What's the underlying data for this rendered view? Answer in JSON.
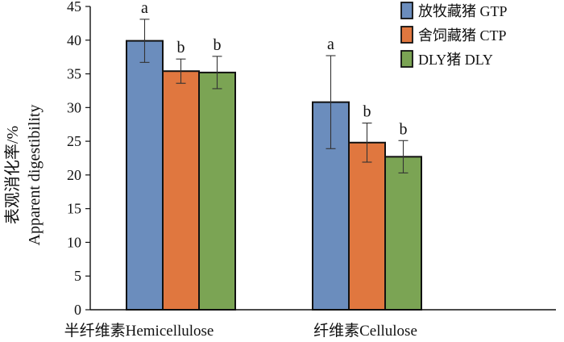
{
  "chart_data": {
    "type": "bar",
    "title": "",
    "xlabel": "",
    "ylabel_cn": "表观消化率/%",
    "ylabel_en": "Apparent digestibility",
    "ylim": [
      0,
      45
    ],
    "yticks": [
      0,
      5,
      10,
      15,
      20,
      25,
      30,
      35,
      40,
      45
    ],
    "grid": false,
    "legend_position": "top-right",
    "categories": [
      "半纤维素Hemicellulose",
      "纤维素Cellulose"
    ],
    "series": [
      {
        "name": "放牧藏猪 GTP",
        "color": "#6b8dbd",
        "values": [
          39.9,
          30.8
        ],
        "errors": [
          3.2,
          6.9
        ],
        "labels": [
          "a",
          "a"
        ]
      },
      {
        "name": "舍饲藏猪 CTP",
        "color": "#e0773f",
        "values": [
          35.4,
          24.8
        ],
        "errors": [
          1.8,
          2.9
        ],
        "labels": [
          "b",
          "b"
        ]
      },
      {
        "name": "DLY猪 DLY",
        "color": "#7ba454",
        "values": [
          35.2,
          22.7
        ],
        "errors": [
          2.4,
          2.4
        ],
        "labels": [
          "b",
          "b"
        ]
      }
    ]
  }
}
